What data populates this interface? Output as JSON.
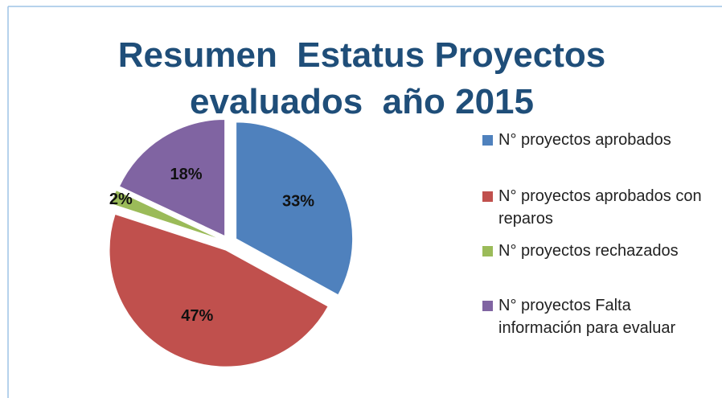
{
  "chart_data": {
    "type": "pie",
    "title": "Resumen  Estatus Proyectos evaluados  año 2015",
    "categories": [
      "N° proyectos aprobados",
      "N° proyectos aprobados con reparos",
      "N° proyectos rechazados",
      "N° proyectos Falta información para evaluar"
    ],
    "values": [
      33,
      47,
      2,
      18
    ],
    "value_labels": [
      "33%",
      "47%",
      "2%",
      "18%"
    ],
    "colors": [
      "#4f81bd",
      "#c0504d",
      "#9bbb59",
      "#8064a2"
    ],
    "legend": "right"
  }
}
